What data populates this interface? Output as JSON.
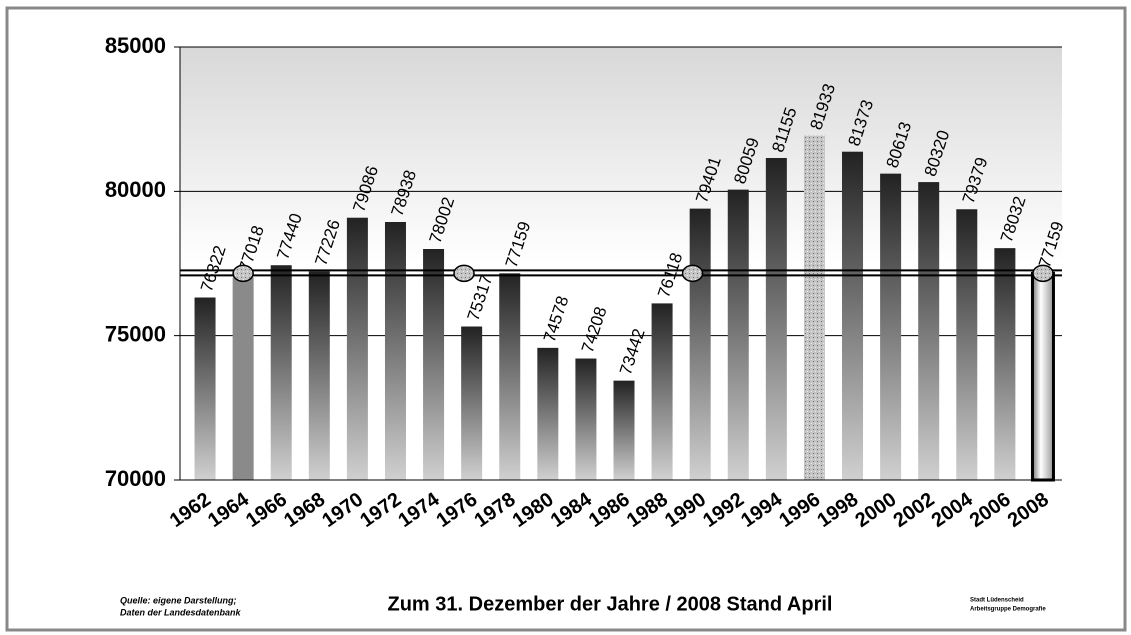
{
  "chart_data": {
    "type": "bar",
    "title": "Zum 31. Dezember der Jahre / 2008 Stand April",
    "source": [
      "Quelle: eigene Darstellung;",
      "Daten der Landesdatenbank"
    ],
    "author": [
      "Stadt Lüdenscheid",
      "Arbeitsgruppe Demografie"
    ],
    "categories": [
      "1962",
      "1964",
      "1966",
      "1968",
      "1970",
      "1972",
      "1974",
      "1976",
      "1978",
      "1980",
      "1984",
      "1986",
      "1988",
      "1990",
      "1992",
      "1994",
      "1996",
      "1998",
      "2000",
      "2002",
      "2004",
      "2006",
      "2008"
    ],
    "values": [
      76322,
      77018,
      77440,
      77226,
      79086,
      78938,
      78002,
      75317,
      77159,
      74578,
      74208,
      73442,
      76118,
      79401,
      80059,
      81155,
      81933,
      81373,
      80613,
      80320,
      79379,
      78032,
      77159
    ],
    "reference": 77159,
    "color": "#222222",
    "ylim": [
      70000,
      85000
    ],
    "yticks": [
      70000,
      75000,
      80000,
      85000
    ],
    "grid": true
  }
}
